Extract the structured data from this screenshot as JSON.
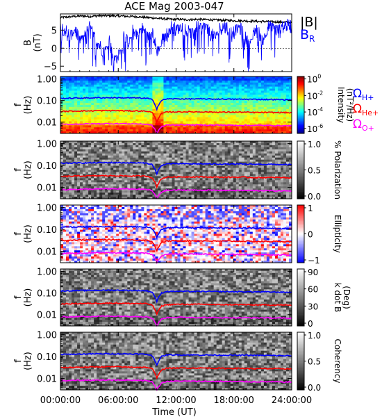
{
  "title": "ACE Mag 2003-047",
  "colors": {
    "B_total": "#000000",
    "B_R": "#0000ff",
    "H_plus": "#0000ff",
    "He_plus": "#ff0000",
    "O_plus": "#ff00ff"
  },
  "chart_data": [
    {
      "type": "line",
      "panel": "B",
      "ylabel": "B",
      "yunit": "(nT)",
      "ylim": [
        -6.5,
        9.5
      ],
      "yticks": [
        -5,
        0,
        5
      ],
      "xlim": [
        0,
        24
      ],
      "legend": [
        {
          "label": "|B|",
          "color": "#000000"
        },
        {
          "label": "B",
          "subscript": "R",
          "color": "#0000ff"
        }
      ],
      "series": [
        {
          "name": "|B|",
          "color": "#000000",
          "x": [
            0,
            0.5,
            1,
            1.5,
            2,
            2.5,
            3,
            3.5,
            4,
            4.5,
            5,
            5.5,
            6,
            6.5,
            7,
            7.5,
            8,
            8.5,
            9,
            9.5,
            10,
            10.5,
            11,
            11.5,
            12,
            12.5,
            13,
            13.5,
            14,
            14.5,
            15,
            15.5,
            16,
            16.5,
            17,
            17.5,
            18,
            18.5,
            19,
            19.5,
            20,
            20.5,
            21,
            21.5,
            22,
            22.5,
            23,
            23.5,
            24
          ],
          "values": [
            8.5,
            8.6,
            8.7,
            8.8,
            8.9,
            8.9,
            8.8,
            8.9,
            9.0,
            9.0,
            9.0,
            9.0,
            8.9,
            8.9,
            8.8,
            8.8,
            8.7,
            8.6,
            8.5,
            8.4,
            8.3,
            8.2,
            8.1,
            8.0,
            8.0,
            8.0,
            7.9,
            7.9,
            8.0,
            8.0,
            7.9,
            7.9,
            7.8,
            7.8,
            7.7,
            7.7,
            7.6,
            7.6,
            7.6,
            7.5,
            7.5,
            7.4,
            7.4,
            7.4,
            7.3,
            7.3,
            7.2,
            7.2,
            7.1
          ]
        },
        {
          "name": "B_R",
          "color": "#0000ff",
          "x": [
            0,
            0.5,
            1,
            1.5,
            2,
            2.5,
            3,
            3.5,
            4,
            4.5,
            5,
            5.5,
            6,
            6.5,
            7,
            7.5,
            8,
            8.5,
            9,
            9.5,
            10,
            10.5,
            11,
            11.5,
            12,
            12.5,
            13,
            13.5,
            14,
            14.5,
            15,
            15.5,
            16,
            16.5,
            17,
            17.5,
            18,
            18.5,
            19,
            19.5,
            20,
            20.5,
            21,
            21.5,
            22,
            22.5,
            23,
            23.5,
            24
          ],
          "values": [
            6.0,
            5.0,
            3.5,
            5.5,
            2.0,
            4.5,
            6.0,
            3.0,
            1.0,
            -1.0,
            3.0,
            -3.5,
            -2.0,
            4.0,
            1.5,
            5.0,
            4.0,
            5.5,
            3.0,
            5.0,
            -1.0,
            2.5,
            4.0,
            6.0,
            5.0,
            6.5,
            5.0,
            4.0,
            6.0,
            5.5,
            6.0,
            4.0,
            3.0,
            5.5,
            6.0,
            4.5,
            5.0,
            6.0,
            4.0,
            1.0,
            5.0,
            4.5,
            2.5,
            6.0,
            5.5,
            5.0,
            6.0,
            6.5,
            6.0
          ]
        }
      ]
    },
    {
      "type": "heatmap",
      "panel": "intensity",
      "ylabel": "f",
      "yunit": "(Hz)",
      "yscale": "log",
      "ylim": [
        0.003,
        1.3
      ],
      "yticks": [
        1.0,
        0.1,
        0.01
      ],
      "ytick_labels": [
        "1.00",
        "0.10",
        "0.01"
      ],
      "colorbar": {
        "label": "Intensity",
        "unit": "(nT²/Hz)",
        "scale": "log",
        "ticks": [
          1,
          0.01,
          0.0001,
          1e-06
        ],
        "tick_labels": [
          {
            "base": "10",
            "exp": "0"
          },
          {
            "base": "10",
            "exp": "-2"
          },
          {
            "base": "10",
            "exp": "-4"
          },
          {
            "base": "10",
            "exp": "-6"
          }
        ]
      },
      "overlay_legend": [
        {
          "label": "Ω",
          "subscript": "H+",
          "color": "#0000ff"
        },
        {
          "label": "Ω",
          "subscript": "He+",
          "color": "#ff0000"
        },
        {
          "label": "Ω",
          "subscript": "O+",
          "color": "#ff00ff"
        }
      ]
    },
    {
      "type": "heatmap",
      "panel": "polarization",
      "ylabel": "f",
      "yunit": "(Hz)",
      "yscale": "log",
      "ylim": [
        0.003,
        1.3
      ],
      "ytick_labels": [
        "1.00",
        "0.10",
        "0.01"
      ],
      "colorbar": {
        "label": "% Polarization",
        "unit": "",
        "range": [
          0,
          1.0
        ],
        "tick_labels": [
          "1.0",
          "0.5",
          "0.0"
        ]
      }
    },
    {
      "type": "heatmap",
      "panel": "ellipticity",
      "ylabel": "f",
      "yunit": "(Hz)",
      "yscale": "log",
      "ylim": [
        0.003,
        1.3
      ],
      "ytick_labels": [
        "1.00",
        "0.10",
        "0.01"
      ],
      "colorbar": {
        "label": "Ellipticity",
        "unit": "",
        "range": [
          -1,
          1
        ],
        "tick_labels": [
          "1",
          "0",
          "−1"
        ]
      }
    },
    {
      "type": "heatmap",
      "panel": "kdotb",
      "ylabel": "f",
      "yunit": "(Hz)",
      "yscale": "log",
      "ylim": [
        0.003,
        1.3
      ],
      "ytick_labels": [
        "1.00",
        "0.10",
        "0.01"
      ],
      "colorbar": {
        "label": "k dot B",
        "unit": "(Deg)",
        "range": [
          0,
          90
        ],
        "tick_labels": [
          "90",
          "60",
          "30",
          "0"
        ]
      }
    },
    {
      "type": "heatmap",
      "panel": "coherency",
      "ylabel": "f",
      "yunit": "(Hz)",
      "yscale": "log",
      "ylim": [
        0.003,
        1.3
      ],
      "ytick_labels": [
        "1.00",
        "0.10",
        "0.01"
      ],
      "colorbar": {
        "label": "Coherency",
        "unit": "",
        "range": [
          0,
          1.0
        ],
        "tick_labels": [
          "1.0",
          "0.5",
          "0.0"
        ]
      }
    }
  ],
  "gyrofrequency_lines": {
    "x": [
      0,
      1,
      2,
      3,
      4,
      5,
      6,
      7,
      8,
      9,
      9.5,
      10,
      10.5,
      11,
      12,
      13,
      14,
      15,
      16,
      17,
      18,
      19,
      20,
      21,
      22,
      23,
      24
    ],
    "H_plus": [
      0.125,
      0.128,
      0.13,
      0.132,
      0.134,
      0.135,
      0.134,
      0.133,
      0.131,
      0.126,
      0.11,
      0.04,
      0.1,
      0.118,
      0.12,
      0.119,
      0.118,
      0.118,
      0.117,
      0.116,
      0.115,
      0.115,
      0.114,
      0.113,
      0.112,
      0.11,
      0.108
    ],
    "He_plus": [
      0.031,
      0.032,
      0.033,
      0.033,
      0.034,
      0.034,
      0.034,
      0.033,
      0.033,
      0.032,
      0.028,
      0.01,
      0.025,
      0.029,
      0.03,
      0.03,
      0.03,
      0.03,
      0.029,
      0.029,
      0.029,
      0.029,
      0.028,
      0.028,
      0.028,
      0.028,
      0.027
    ],
    "O_plus": [
      0.0078,
      0.008,
      0.0082,
      0.0083,
      0.0084,
      0.0085,
      0.0085,
      0.0084,
      0.0083,
      0.008,
      0.007,
      0.003,
      0.0062,
      0.0073,
      0.0075,
      0.0075,
      0.0074,
      0.0074,
      0.0073,
      0.0073,
      0.0072,
      0.0072,
      0.0071,
      0.0071,
      0.007,
      0.0069,
      0.0068
    ]
  },
  "xaxis": {
    "label": "Time (UT)",
    "range": [
      0,
      24
    ],
    "ticks": [
      0,
      6,
      12,
      18,
      24
    ],
    "tick_labels": [
      "00:00:00",
      "06:00:00",
      "12:00:00",
      "18:00:00",
      "24:00:00"
    ]
  }
}
